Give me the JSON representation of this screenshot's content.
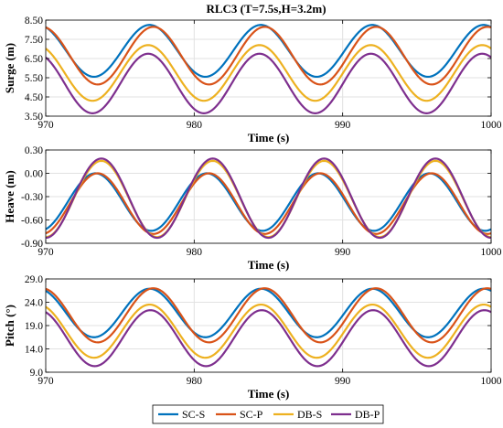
{
  "chart_data": {
    "title": "RLC3 (T=7.5s,H=3.2m)",
    "type": "line",
    "legend": {
      "placement": "bottom",
      "entries": [
        "SC-S",
        "SC-P",
        "DB-S",
        "DB-P"
      ]
    },
    "colors": [
      "#0072BD",
      "#D95319",
      "#EDB120",
      "#7E2F8E"
    ],
    "grid": true,
    "panels": [
      {
        "name": "surge",
        "ylabel": "Surge (m)",
        "xlabel": "Time (s)",
        "xlim": [
          970,
          1000
        ],
        "xticks": [
          "970",
          "980",
          "990",
          "1000"
        ],
        "ylim": [
          3.5,
          8.5
        ],
        "yticks": [
          "3.50",
          "4.50",
          "5.50",
          "6.50",
          "7.50",
          "8.50"
        ],
        "series": [
          {
            "name": "SC-S",
            "mean": 6.9,
            "amp": 1.35,
            "phase": 0.0
          },
          {
            "name": "SC-P",
            "mean": 6.65,
            "amp": 1.5,
            "phase": 0.25
          },
          {
            "name": "DB-S",
            "mean": 5.75,
            "amp": 1.45,
            "phase": -0.1
          },
          {
            "name": "DB-P",
            "mean": 5.2,
            "amp": 1.55,
            "phase": -0.1
          }
        ],
        "period": 7.5,
        "peak_time": 977.0
      },
      {
        "name": "heave",
        "ylabel": "Heave (m)",
        "xlabel": "Time (s)",
        "xlim": [
          970,
          1000
        ],
        "xticks": [
          "970",
          "980",
          "990",
          "1000"
        ],
        "ylim": [
          -0.9,
          0.3
        ],
        "yticks": [
          "-0.90",
          "-0.60",
          "-0.30",
          "0.00",
          "0.30"
        ],
        "series": [
          {
            "name": "SC-S",
            "mean": -0.37,
            "amp": 0.37,
            "phase": -0.35
          },
          {
            "name": "SC-P",
            "mean": -0.39,
            "amp": 0.39,
            "phase": -0.2
          },
          {
            "name": "DB-S",
            "mean": -0.33,
            "amp": 0.49,
            "phase": 0.05
          },
          {
            "name": "DB-P",
            "mean": -0.32,
            "amp": 0.51,
            "phase": 0.05
          }
        ],
        "period": 7.5,
        "peak_time": 973.7
      },
      {
        "name": "pitch",
        "ylabel": "Pitch (°)",
        "xlabel": "Time (s)",
        "xlim": [
          970,
          1000
        ],
        "xticks": [
          "970",
          "980",
          "990",
          "1000"
        ],
        "ylim": [
          9.0,
          29.0
        ],
        "yticks": [
          "9.0",
          "14.0",
          "19.0",
          "24.0",
          "29.0"
        ],
        "series": [
          {
            "name": "SC-S",
            "mean": 21.7,
            "amp": 5.2,
            "phase": -0.1
          },
          {
            "name": "SC-P",
            "mean": 21.2,
            "amp": 5.8,
            "phase": 0.15
          },
          {
            "name": "DB-S",
            "mean": 17.8,
            "amp": 5.7,
            "phase": -0.1
          },
          {
            "name": "DB-P",
            "mean": 16.3,
            "amp": 6.0,
            "phase": -0.05
          }
        ],
        "period": 7.5,
        "peak_time": 977.1
      }
    ]
  }
}
